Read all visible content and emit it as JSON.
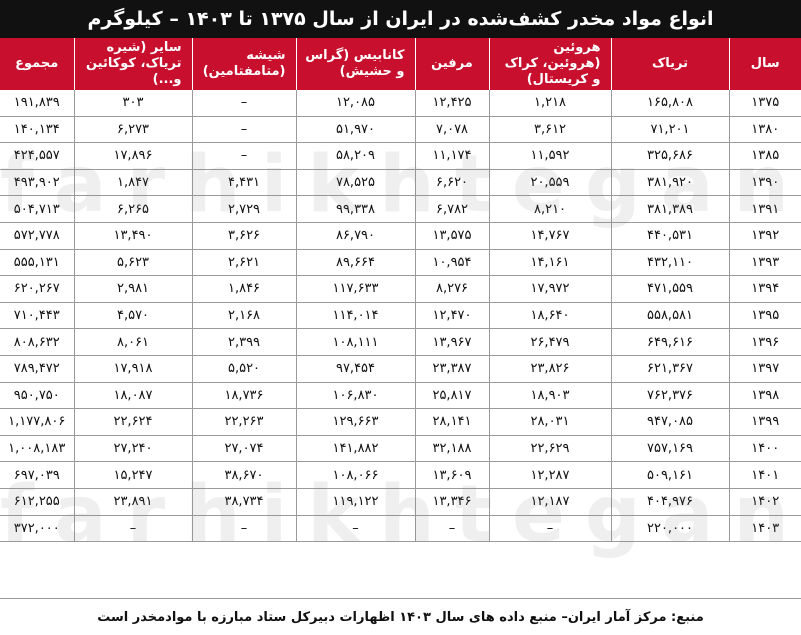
{
  "title": "انواع مواد مخدر کشف‌شده در ایران از سال ۱۳۷۵ تا ۱۴۰۳ – کیلوگرم",
  "watermark": "farhikhtegan",
  "headers": {
    "year": "سال",
    "opium": "تریاک",
    "heroin": "هروئین (هروئین، کراک و کریستال)",
    "morphine": "مرفین",
    "cannabis": "کانابیس (گراس و حشیش)",
    "glass": "شیشه (متامفتامین)",
    "other": "سایر (شیره تریاک، کوکائین و...)",
    "total": "مجموع"
  },
  "rows": [
    {
      "year": "۱۳۷۵",
      "opium": "۱۶۵,۸۰۸",
      "heroin": "۱,۲۱۸",
      "morphine": "۱۲,۴۲۵",
      "cannabis": "۱۲,۰۸۵",
      "glass": "–",
      "other": "۳۰۳",
      "total": "۱۹۱,۸۳۹"
    },
    {
      "year": "۱۳۸۰",
      "opium": "۷۱,۲۰۱",
      "heroin": "۳,۶۱۲",
      "morphine": "۷,۰۷۸",
      "cannabis": "۵۱,۹۷۰",
      "glass": "–",
      "other": "۶,۲۷۳",
      "total": "۱۴۰,۱۳۴"
    },
    {
      "year": "۱۳۸۵",
      "opium": "۳۲۵,۶۸۶",
      "heroin": "۱۱,۵۹۲",
      "morphine": "۱۱,۱۷۴",
      "cannabis": "۵۸,۲۰۹",
      "glass": "–",
      "other": "۱۷,۸۹۶",
      "total": "۴۲۴,۵۵۷"
    },
    {
      "year": "۱۳۹۰",
      "opium": "۳۸۱,۹۲۰",
      "heroin": "۲۰,۵۵۹",
      "morphine": "۶,۶۲۰",
      "cannabis": "۷۸,۵۲۵",
      "glass": "۴,۴۳۱",
      "other": "۱,۸۴۷",
      "total": "۴۹۳,۹۰۲"
    },
    {
      "year": "۱۳۹۱",
      "opium": "۳۸۱,۳۸۹",
      "heroin": "۸,۲۱۰",
      "morphine": "۶,۷۸۲",
      "cannabis": "۹۹,۳۳۸",
      "glass": "۲,۷۲۹",
      "other": "۶,۲۶۵",
      "total": "۵۰۴,۷۱۳"
    },
    {
      "year": "۱۳۹۲",
      "opium": "۴۴۰,۵۳۱",
      "heroin": "۱۴,۷۶۷",
      "morphine": "۱۳,۵۷۵",
      "cannabis": "۸۶,۷۹۰",
      "glass": "۳,۶۲۶",
      "other": "۱۳,۴۹۰",
      "total": "۵۷۲,۷۷۸"
    },
    {
      "year": "۱۳۹۳",
      "opium": "۴۳۲,۱۱۰",
      "heroin": "۱۴,۱۶۱",
      "morphine": "۱۰,۹۵۴",
      "cannabis": "۸۹,۶۶۴",
      "glass": "۲,۶۲۱",
      "other": "۵,۶۲۳",
      "total": "۵۵۵,۱۳۱"
    },
    {
      "year": "۱۳۹۴",
      "opium": "۴۷۱,۵۵۹",
      "heroin": "۱۷,۹۷۲",
      "morphine": "۸,۲۷۶",
      "cannabis": "۱۱۷,۶۳۳",
      "glass": "۱,۸۴۶",
      "other": "۲,۹۸۱",
      "total": "۶۲۰,۲۶۷"
    },
    {
      "year": "۱۳۹۵",
      "opium": "۵۵۸,۵۸۱",
      "heroin": "۱۸,۶۴۰",
      "morphine": "۱۲,۴۷۰",
      "cannabis": "۱۱۴,۰۱۴",
      "glass": "۲,۱۶۸",
      "other": "۴,۵۷۰",
      "total": "۷۱۰,۴۴۳"
    },
    {
      "year": "۱۳۹۶",
      "opium": "۶۴۹,۶۱۶",
      "heroin": "۲۶,۴۷۹",
      "morphine": "۱۳,۹۶۷",
      "cannabis": "۱۰۸,۱۱۱",
      "glass": "۲,۳۹۹",
      "other": "۸,۰۶۱",
      "total": "۸۰۸,۶۳۲"
    },
    {
      "year": "۱۳۹۷",
      "opium": "۶۲۱,۳۶۷",
      "heroin": "۲۳,۸۲۶",
      "morphine": "۲۳,۳۸۷",
      "cannabis": "۹۷,۴۵۴",
      "glass": "۵,۵۲۰",
      "other": "۱۷,۹۱۸",
      "total": "۷۸۹,۴۷۲"
    },
    {
      "year": "۱۳۹۸",
      "opium": "۷۶۲,۳۷۶",
      "heroin": "۱۸,۹۰۳",
      "morphine": "۲۵,۸۱۷",
      "cannabis": "۱۰۶,۸۳۰",
      "glass": "۱۸,۷۳۶",
      "other": "۱۸,۰۸۷",
      "total": "۹۵۰,۷۵۰"
    },
    {
      "year": "۱۳۹۹",
      "opium": "۹۴۷,۰۸۵",
      "heroin": "۲۸,۰۳۱",
      "morphine": "۲۸,۱۴۱",
      "cannabis": "۱۲۹,۶۶۳",
      "glass": "۲۲,۲۶۳",
      "other": "۲۲,۶۲۴",
      "total": "۱,۱۷۷,۸۰۶"
    },
    {
      "year": "۱۴۰۰",
      "opium": "۷۵۷,۱۶۹",
      "heroin": "۲۲,۶۲۹",
      "morphine": "۳۲,۱۸۸",
      "cannabis": "۱۴۱,۸۸۲",
      "glass": "۲۷,۰۷۴",
      "other": "۲۷,۲۴۰",
      "total": "۱,۰۰۸,۱۸۳"
    },
    {
      "year": "۱۴۰۱",
      "opium": "۵۰۹,۱۶۱",
      "heroin": "۱۲,۲۸۷",
      "morphine": "۱۳,۶۰۹",
      "cannabis": "۱۰۸,۰۶۶",
      "glass": "۳۸,۶۷۰",
      "other": "۱۵,۲۴۷",
      "total": "۶۹۷,۰۳۹"
    },
    {
      "year": "۱۴۰۲",
      "opium": "۴۰۴,۹۷۶",
      "heroin": "۱۲,۱۸۷",
      "morphine": "۱۳,۳۴۶",
      "cannabis": "۱۱۹,۱۲۲",
      "glass": "۳۸,۷۳۴",
      "other": "۲۳,۸۹۱",
      "total": "۶۱۲,۲۵۵"
    },
    {
      "year": "۱۴۰۳",
      "opium": "۲۲۰,۰۰۰",
      "heroin": "–",
      "morphine": "–",
      "cannabis": "–",
      "glass": "–",
      "other": "–",
      "total": "۳۷۲,۰۰۰"
    }
  ],
  "source": "منبع: مرکز آمار ایران– منبع داده های سال ۱۴۰۳ اظهارات دبیرکل ستاد مبارزه با موادمخدر است"
}
